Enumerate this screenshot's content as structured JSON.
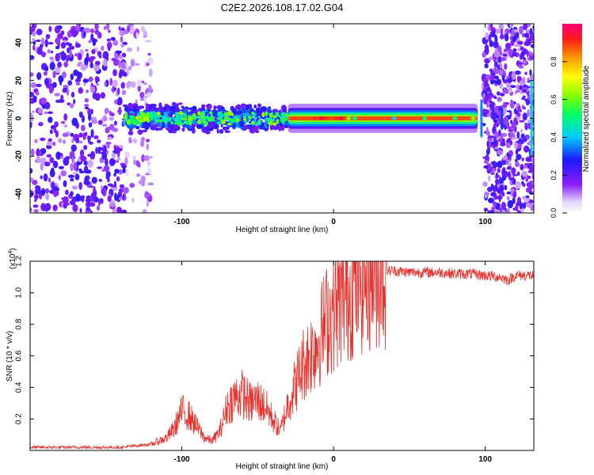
{
  "figure": {
    "title": "C2E2.2026.108.17.02.G04"
  },
  "colors": {
    "line": "#e8322d",
    "axis": "#000000",
    "background": "#ffffff"
  },
  "colorbar": {
    "label": "Normalized spectral amplitude",
    "ticks": [
      "0.0",
      "0.2",
      "0.4",
      "0.6",
      "0.8"
    ],
    "tick_values": [
      0.0,
      0.2,
      0.4,
      0.6,
      0.8
    ],
    "range": [
      0,
      1
    ]
  },
  "chart_data": [
    {
      "type": "heatmap",
      "title": "C2E2.2026.108.17.02.G04",
      "xlabel": "Height of straight line (km)",
      "ylabel": "Frequency (Hz)",
      "xlim": [
        -200,
        132
      ],
      "ylim": [
        -50,
        50
      ],
      "xticks": [
        -100,
        0,
        100
      ],
      "xtick_labels": [
        "-100",
        "0",
        "100"
      ],
      "yticks": [
        -40,
        -20,
        0,
        20,
        40
      ],
      "ytick_labels": [
        "-40",
        "-20",
        "0",
        "20",
        "40"
      ],
      "colorscale": "rainbow",
      "features": [
        {
          "name": "noise region",
          "x_range": [
            -200,
            -137
          ],
          "freq_range": [
            -50,
            50
          ],
          "amplitude": 0.25
        },
        {
          "name": "sparse noise",
          "x_range": [
            -137,
            -120
          ],
          "freq_range": [
            -50,
            50
          ],
          "amplitude": 0.1
        },
        {
          "name": "broad band",
          "x_range": [
            -137,
            -30
          ],
          "freq_range": [
            -7,
            7
          ],
          "amplitude": 0.4
        },
        {
          "name": "narrow band",
          "x_range": [
            -30,
            95
          ],
          "freq_range": [
            -3,
            3
          ],
          "amplitude": 0.85
        },
        {
          "name": "noise region",
          "x_range": [
            99,
            132
          ],
          "freq_range": [
            -50,
            50
          ],
          "amplitude": 0.25
        }
      ]
    },
    {
      "type": "line",
      "xlabel": "Height of straight line (km)",
      "ylabel": "SNR (10 * v/v)",
      "scale_label": "(x10",
      "scale_exponent": "4",
      "xlim": [
        -200,
        132
      ],
      "ylim": [
        0,
        1.2
      ],
      "xticks": [
        -100,
        0,
        100
      ],
      "xtick_labels": [
        "-100",
        "0",
        "100"
      ],
      "yticks": [
        0.2,
        0.4,
        0.6,
        0.8,
        1.0,
        1.2
      ],
      "ytick_labels": [
        "0.2",
        "0.4",
        "0.6",
        "0.8",
        "1.0",
        "1.2"
      ],
      "series": [
        {
          "name": "SNR",
          "x": [
            -200,
            -180,
            -160,
            -140,
            -130,
            -120,
            -110,
            -105,
            -100,
            -95,
            -90,
            -85,
            -80,
            -75,
            -70,
            -65,
            -60,
            -55,
            -50,
            -45,
            -40,
            -35,
            -30,
            -25,
            -20,
            -15,
            -10,
            -5,
            0,
            5,
            10,
            15,
            20,
            25,
            30,
            40,
            50,
            60,
            70,
            80,
            90,
            100,
            110,
            115,
            120,
            125,
            132
          ],
          "y": [
            0.02,
            0.02,
            0.02,
            0.02,
            0.03,
            0.04,
            0.08,
            0.14,
            0.25,
            0.22,
            0.15,
            0.08,
            0.06,
            0.12,
            0.28,
            0.34,
            0.36,
            0.3,
            0.32,
            0.28,
            0.2,
            0.12,
            0.3,
            0.42,
            0.55,
            0.62,
            0.7,
            0.82,
            0.88,
            0.95,
            1.0,
            1.06,
            1.1,
            1.12,
            1.14,
            1.14,
            1.13,
            1.13,
            1.13,
            1.12,
            1.12,
            1.11,
            1.1,
            1.08,
            1.11,
            1.11,
            1.11
          ]
        }
      ]
    }
  ]
}
